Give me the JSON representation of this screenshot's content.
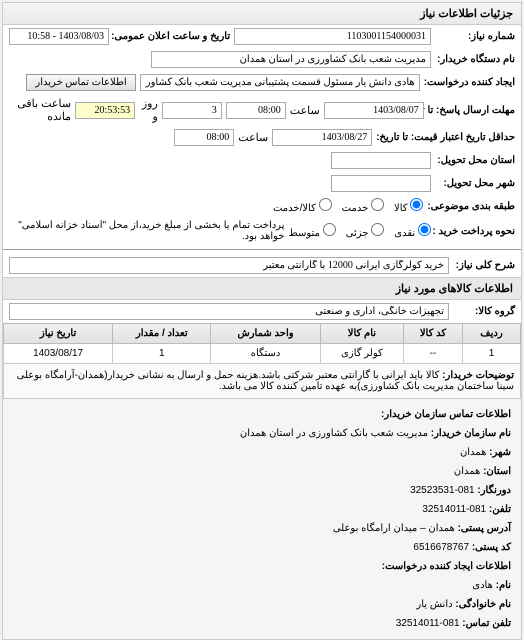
{
  "panel_title": "جزئیات اطلاعات نیاز",
  "header": {
    "needno_label": "شماره نیاز:",
    "needno": "1103001154000031",
    "pubdate_label": "تاریخ و ساعت اعلان عمومی:",
    "pubdate": "1403/08/03 - 10:58",
    "buyer_label": "نام دستگاه خریدار:",
    "buyer": "مدیریت شعب بانک کشاورزی در استان همدان",
    "creator_label": "ایجاد کننده درخواست:",
    "creator": "هادی دانش یار مسئول قسمت پشتیبانی مدیریت شعب بانک کشاورزی در استا",
    "buyer_contact_btn": "اطلاعات تماس خریدار",
    "deadline_label": "مهلت ارسال پاسخ: تا تاریخ:",
    "deadline_date": "1403/08/07",
    "time_label": "ساعت",
    "deadline_time": "08:00",
    "days_label": "روز و",
    "days": "3",
    "remain_label": "ساعت باقی مانده",
    "remain": "20:53:53",
    "validity_label": "حداقل تاریخ اعتبار قیمت: تا تاریخ:",
    "validity_date": "1403/08/27",
    "validity_time": "08:00",
    "province_label": "استان محل تحویل:",
    "province": "",
    "city_label": "شهر محل تحویل:",
    "city": "",
    "class_label": "طبقه بندی موضوعی:",
    "class_opt_all": "کالا",
    "class_opt_goods": "کالا",
    "class_opt_service": "خدمت",
    "class_opt_both": "کالا/خدمت",
    "pay_label": "نحوه پرداخت خرید :",
    "pay_opt_a": "نقدی",
    "pay_opt_b": "جزئی",
    "pay_opt_c": "متوسط",
    "pay_note": "پرداخت تمام یا بخشی از مبلغ خرید،از محل \"اسناد خزانه اسلامی\" خواهد بود."
  },
  "desc": {
    "label": "شرح کلی نیاز:",
    "value": "خرید کولرگازی ایرانی 12000 با گارانتی معتبر"
  },
  "items_header": "اطلاعات کالاهای مورد نیاز",
  "group_label": "گروه کالا:",
  "group_value": "تجهیزات خانگی، اداری و صنعتی",
  "table": {
    "cols": [
      "ردیف",
      "کد کالا",
      "نام کالا",
      "واحد شمارش",
      "تعداد / مقدار",
      "تاریخ نیاز"
    ],
    "row": [
      "1",
      "--",
      "کولر گازی",
      "دستگاه",
      "1",
      "1403/08/17"
    ],
    "note_label": "توضیحات خریدار:",
    "note": "کالا باید ایرانی با گارانتی معتبر شرکتی باشد.هزینه حمل و ارسال به نشانی خریدار(همدان-آرامگاه بوعلی سینا ساختمان مدیریت بانک کشاورزی)به عهده تامین کننده کالا می باشد."
  },
  "contact": {
    "title": "اطلاعات تماس سازمان خریدار:",
    "org_label": "نام سازمان خریدار:",
    "org": "مدیریت شعب بانک کشاورزی در استان همدان",
    "city_label": "شهر:",
    "city": "همدان",
    "province_label": "استان:",
    "province": "همدان",
    "fax_label": "دورنگار:",
    "fax": "081-32523531",
    "tel_label": "تلفن:",
    "tel": "081-32514011",
    "addr_label": "آدرس پستی:",
    "addr": "همدان – میدان ارامگاه بوعلی",
    "zip_label": "کد پستی:",
    "zip": "6516678767",
    "creator_title": "اطلاعات ایجاد کننده درخواست:",
    "name_label": "نام:",
    "name": "هادی",
    "family_label": "نام خانوادگی:",
    "family": "دانش یار",
    "ctel_label": "تلفن تماس:",
    "ctel": "081-32514011"
  }
}
